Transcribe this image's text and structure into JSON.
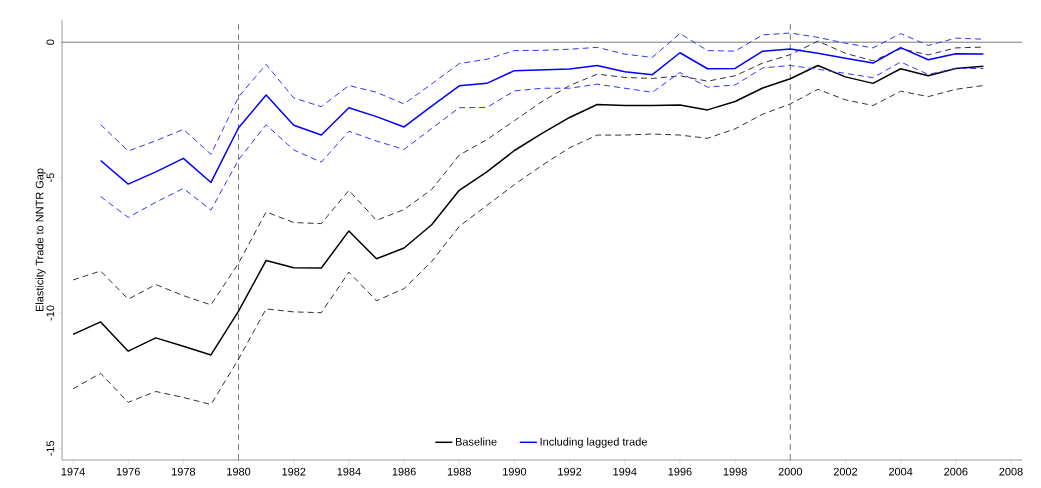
{
  "chart_data": {
    "type": "line",
    "ylabel": "Elasticity Trade to NNTR Gap",
    "x": [
      1974,
      1975,
      1976,
      1977,
      1978,
      1979,
      1980,
      1981,
      1982,
      1983,
      1984,
      1985,
      1986,
      1987,
      1988,
      1989,
      1990,
      1991,
      1992,
      1993,
      1994,
      1995,
      1996,
      1997,
      1998,
      1999,
      2000,
      2001,
      2002,
      2003,
      2004,
      2005,
      2006,
      2007
    ],
    "series": [
      {
        "name": "Baseline",
        "color": "#000000",
        "line_style": "solid",
        "values": [
          -10.79,
          -10.33,
          -11.41,
          -10.92,
          -11.23,
          -11.55,
          -9.93,
          -8.06,
          -8.33,
          -8.34,
          -6.97,
          -8.0,
          -7.6,
          -6.74,
          -5.47,
          -4.79,
          -4.0,
          -3.37,
          -2.78,
          -2.3,
          -2.34,
          -2.34,
          -2.32,
          -2.5,
          -2.19,
          -1.69,
          -1.35,
          -0.86,
          -1.28,
          -1.52,
          -0.98,
          -1.24,
          -0.97,
          -0.89
        ]
      },
      {
        "color": "#333333",
        "line_style": "dashed",
        "values": [
          -8.78,
          -8.45,
          -9.49,
          -8.95,
          -9.36,
          -9.7,
          -8.16,
          -6.27,
          -6.66,
          -6.7,
          -5.47,
          -6.58,
          -6.18,
          -5.44,
          -4.17,
          -3.6,
          -2.9,
          -2.19,
          -1.6,
          -1.18,
          -1.3,
          -1.34,
          -1.24,
          -1.44,
          -1.24,
          -0.77,
          -0.46,
          0.04,
          -0.41,
          -0.69,
          -0.24,
          -0.47,
          -0.21,
          -0.18
        ]
      },
      {
        "color": "#333333",
        "line_style": "dashed",
        "values": [
          -12.8,
          -12.23,
          -13.3,
          -12.9,
          -13.12,
          -13.38,
          -11.7,
          -9.85,
          -9.96,
          -9.99,
          -8.49,
          -9.55,
          -9.1,
          -8.1,
          -6.8,
          -6.03,
          -5.26,
          -4.55,
          -3.9,
          -3.43,
          -3.43,
          -3.39,
          -3.43,
          -3.55,
          -3.2,
          -2.66,
          -2.28,
          -1.74,
          -2.13,
          -2.34,
          -1.81,
          -2.01,
          -1.74,
          -1.6
        ]
      },
      {
        "name": "Including lagged trade",
        "color": "#0000ff",
        "line_style": "solid",
        "values": [
          null,
          -4.37,
          -5.24,
          -4.79,
          -4.29,
          -5.18,
          -3.16,
          -1.95,
          -3.07,
          -3.43,
          -2.42,
          -2.75,
          -3.13,
          -2.36,
          -1.61,
          -1.52,
          -1.05,
          -1.02,
          -0.99,
          -0.86,
          -1.09,
          -1.2,
          -0.39,
          -0.98,
          -0.97,
          -0.33,
          -0.25,
          -0.41,
          -0.59,
          -0.77,
          -0.2,
          -0.65,
          -0.43,
          -0.44
        ]
      },
      {
        "color": "#3333ff",
        "line_style": "dashed",
        "values": [
          null,
          -3.04,
          -4.02,
          -3.64,
          -3.22,
          -4.14,
          -2.02,
          -0.82,
          -2.06,
          -2.38,
          -1.6,
          -1.85,
          -2.28,
          -1.54,
          -0.79,
          -0.63,
          -0.31,
          -0.3,
          -0.26,
          -0.19,
          -0.44,
          -0.56,
          0.32,
          -0.31,
          -0.33,
          0.27,
          0.34,
          0.18,
          -0.04,
          -0.21,
          0.32,
          -0.12,
          0.15,
          0.11
        ]
      },
      {
        "color": "#3333ff",
        "line_style": "dashed",
        "values": [
          null,
          -5.7,
          -6.47,
          -5.91,
          -5.4,
          -6.2,
          -4.34,
          -3.05,
          -3.98,
          -4.43,
          -3.29,
          -3.65,
          -3.96,
          -3.19,
          -2.42,
          -2.41,
          -1.8,
          -1.7,
          -1.7,
          -1.55,
          -1.7,
          -1.85,
          -1.12,
          -1.66,
          -1.58,
          -0.95,
          -0.86,
          -1.0,
          -1.15,
          -1.31,
          -0.73,
          -1.19,
          -0.97,
          -0.97
        ]
      }
    ],
    "xlim": [
      1973.6,
      2008.4
    ],
    "ylim": [
      -15.43,
      0.82
    ],
    "xticks": [
      1974,
      1976,
      1978,
      1980,
      1982,
      1984,
      1986,
      1988,
      1990,
      1992,
      1994,
      1996,
      1998,
      2000,
      2002,
      2004,
      2006,
      2008
    ],
    "yticks": [
      -15,
      -10,
      -5,
      0
    ],
    "ref_lines": [
      {
        "axis": "x",
        "value": 1980,
        "color": "#555555",
        "line_style": "dashed"
      },
      {
        "axis": "x",
        "value": 2000,
        "color": "#555555",
        "line_style": "dashed"
      },
      {
        "axis": "y",
        "value": 0,
        "color": "#555555",
        "line_style": "solid"
      }
    ],
    "grid": false,
    "legend": "bottom",
    "marker": "none"
  }
}
